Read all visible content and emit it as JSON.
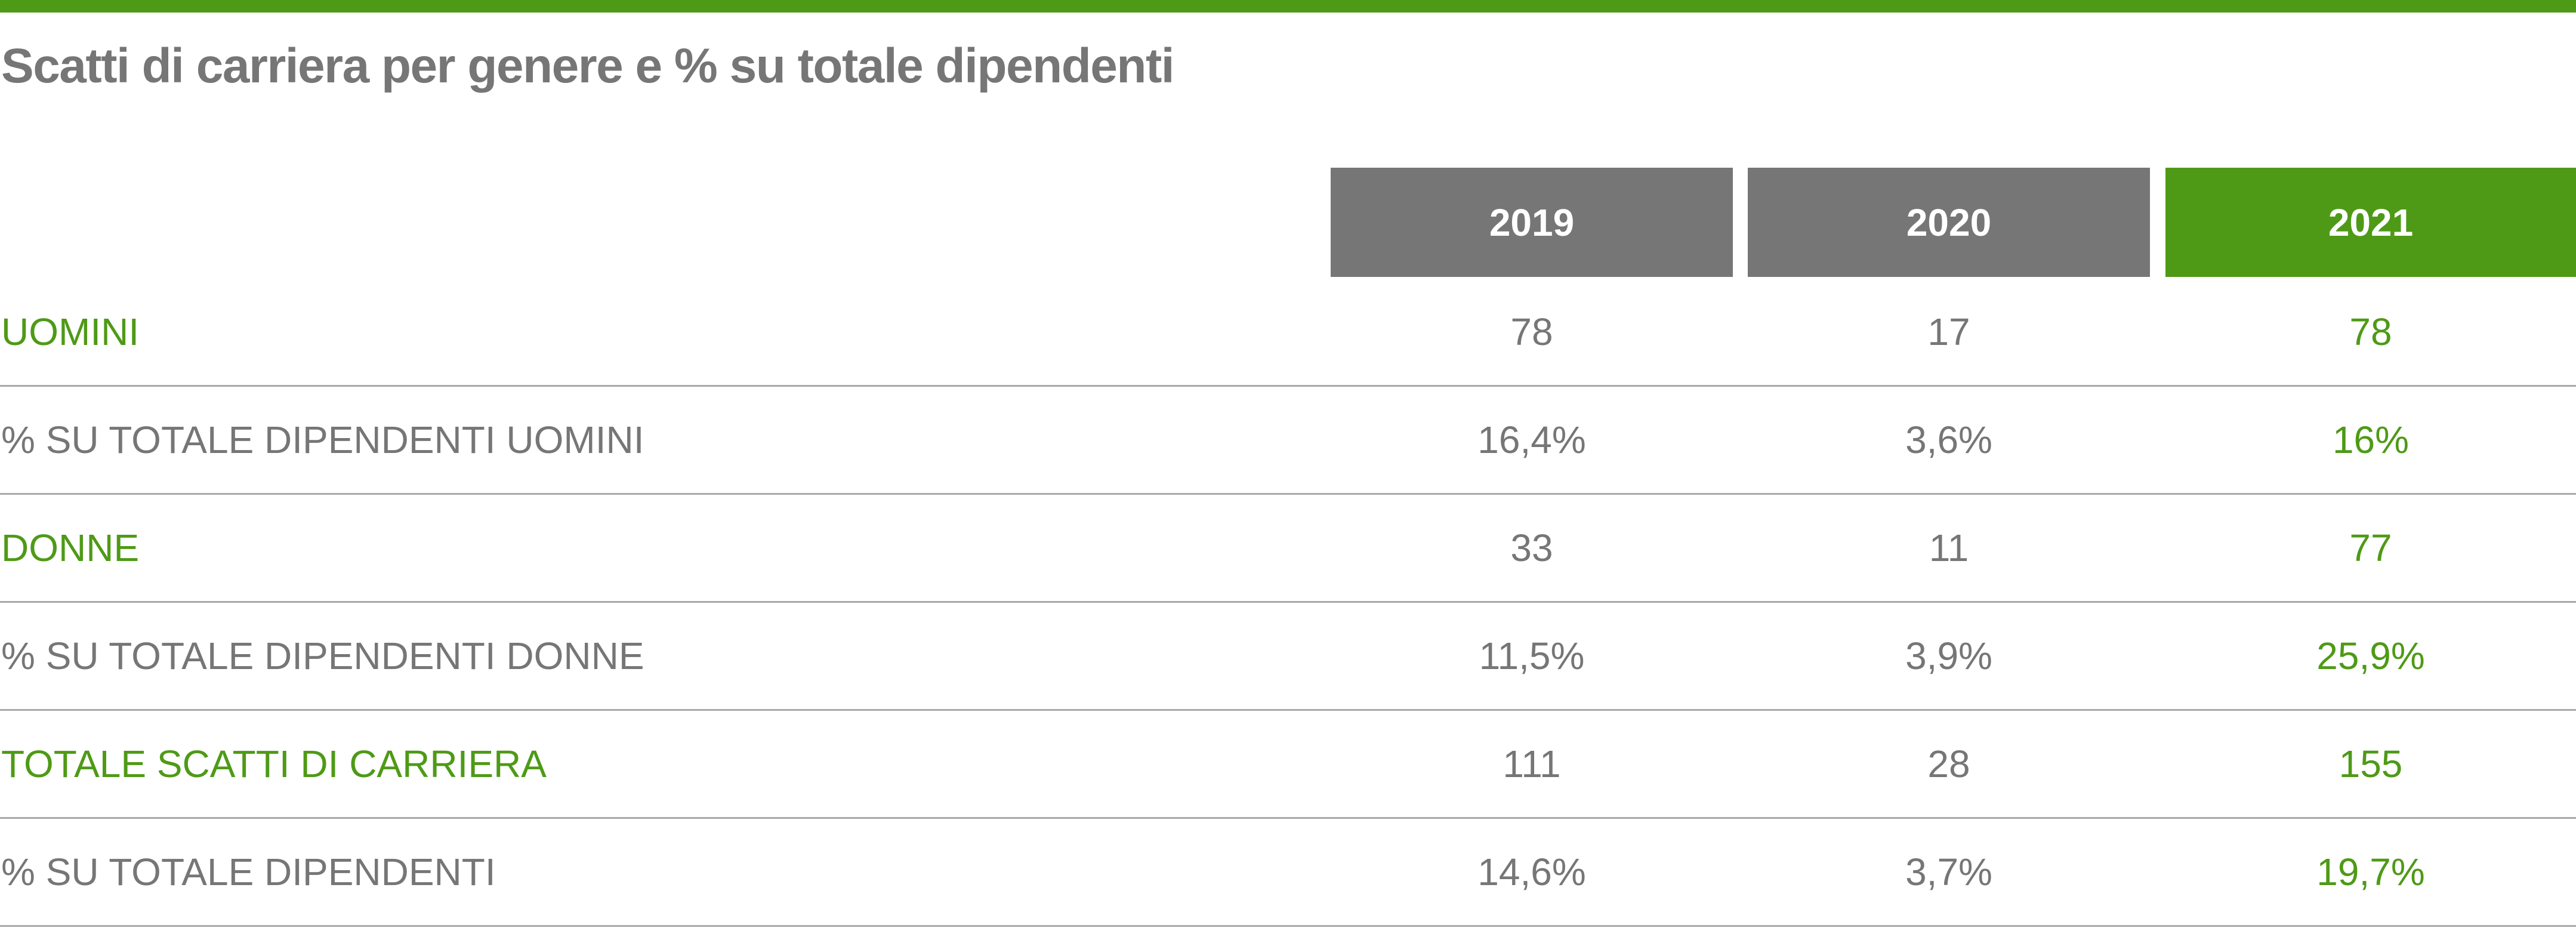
{
  "title": "Scatti di carriera per genere e % su totale dipendenti",
  "colors": {
    "accent": "#4e9a16",
    "header_gray": "#767677",
    "text_gray": "#767676",
    "rule": "#a9a9a9"
  },
  "table": {
    "columns": [
      "2019",
      "2020",
      "2021"
    ],
    "rows": [
      {
        "label": "UOMINI",
        "values": [
          "78",
          "17",
          "78"
        ]
      },
      {
        "label": "% SU TOTALE DIPENDENTI UOMINI",
        "values": [
          "16,4%",
          "3,6%",
          "16%"
        ]
      },
      {
        "label": "DONNE",
        "values": [
          "33",
          "11",
          "77"
        ]
      },
      {
        "label": "% SU TOTALE DIPENDENTI DONNE",
        "values": [
          "11,5%",
          "3,9%",
          "25,9%"
        ]
      },
      {
        "label": "TOTALE SCATTI DI CARRIERA",
        "values": [
          "111",
          "28",
          "155"
        ]
      },
      {
        "label": "% SU TOTALE DIPENDENTI",
        "values": [
          "14,6%",
          "3,7%",
          "19,7%"
        ]
      }
    ]
  }
}
